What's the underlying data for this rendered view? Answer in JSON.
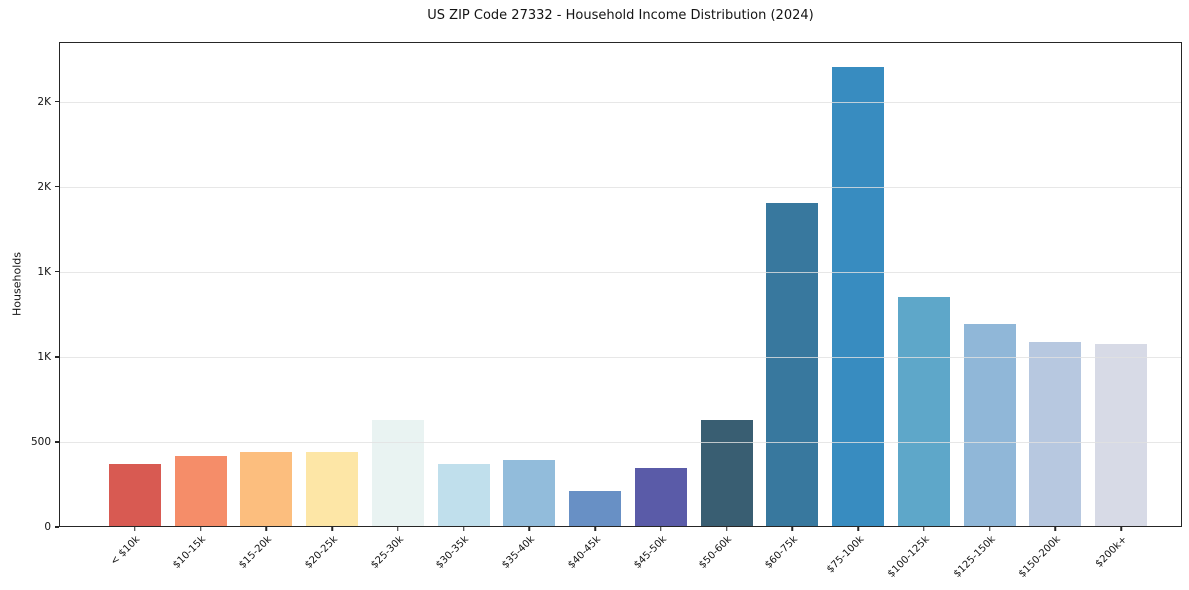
{
  "chart_data": {
    "type": "bar",
    "title": "US ZIP Code 27332 - Household Income Distribution (2024)",
    "xlabel": "",
    "ylabel": "Households",
    "categories": [
      "< $10k",
      "$10-15k",
      "$15-20k",
      "$20-25k",
      "$25-30k",
      "$30-35k",
      "$35-40k",
      "$40-45k",
      "$45-50k",
      "$50-60k",
      "$60-75k",
      "$75-100k",
      "$100-125k",
      "$125-150k",
      "$150-200k",
      "$200k+"
    ],
    "values": [
      371,
      418,
      441,
      438,
      630,
      369,
      394,
      212,
      347,
      626,
      1906,
      2702,
      1352,
      1194,
      1085,
      1073
    ],
    "bar_colors": [
      "#d85a52",
      "#f58d69",
      "#fcbe7e",
      "#fde6a6",
      "#e9f3f2",
      "#c0dfec",
      "#92bcdb",
      "#6890c5",
      "#5a5ba8",
      "#395e72",
      "#38789e",
      "#388cc0",
      "#5ea7c9",
      "#90b7d8",
      "#b7c8e0",
      "#d7dae6"
    ],
    "ylim": [
      0,
      2850
    ],
    "yticks": {
      "values": [
        0,
        500,
        1000,
        1500,
        2000,
        2500
      ],
      "labels": [
        "0",
        "500",
        "1K",
        "1K",
        "2K",
        "2K"
      ]
    },
    "grid": "horizontal-only",
    "grid_color": "#e1e1e1",
    "grid_above_bars": true,
    "legend": "none",
    "background_color": "#ffffff",
    "spine_color": "#262626",
    "x_tick_label_rotation_deg": 45
  }
}
